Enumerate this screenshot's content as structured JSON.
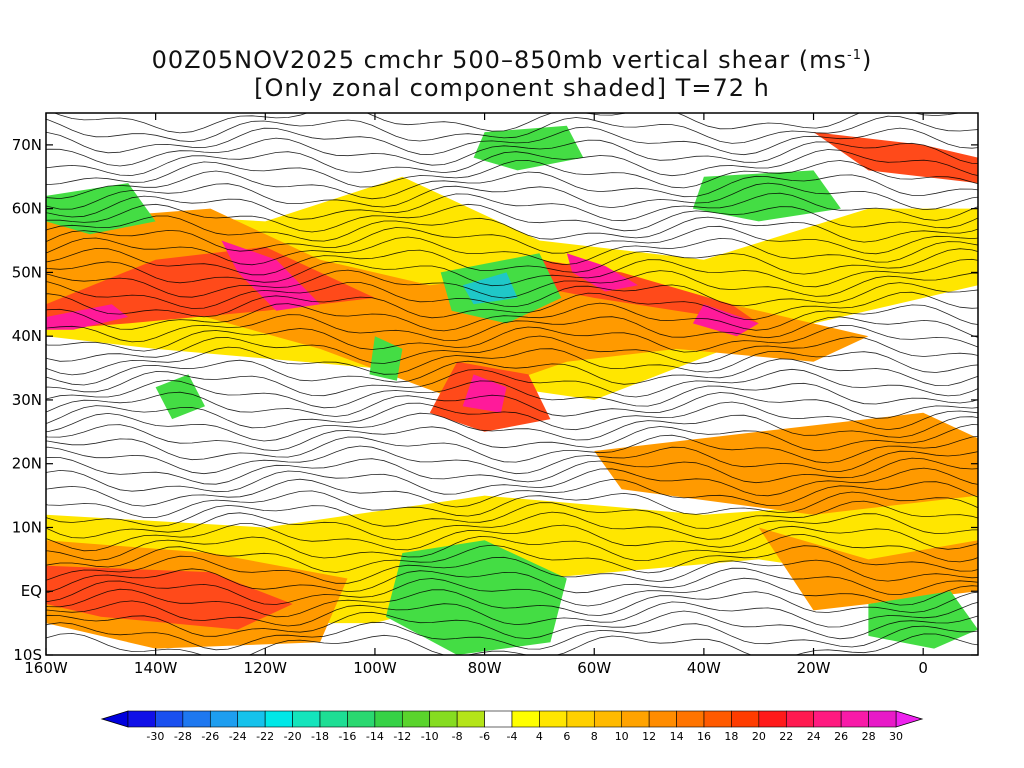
{
  "title": {
    "line1_prefix": "00Z05NOV2025 cmchr 500–850mb vertical shear (ms",
    "line1_sup": "-1",
    "line1_suffix": ")",
    "line2": "[Only zonal component shaded] T=72 h"
  },
  "map": {
    "lon_range": [
      -160,
      10
    ],
    "lat_range": [
      -10,
      75
    ],
    "lon_ticks": [
      {
        "value": -160,
        "label": "160W"
      },
      {
        "value": -140,
        "label": "140W"
      },
      {
        "value": -120,
        "label": "120W"
      },
      {
        "value": -100,
        "label": "100W"
      },
      {
        "value": -80,
        "label": "80W"
      },
      {
        "value": -60,
        "label": "60W"
      },
      {
        "value": -40,
        "label": "40W"
      },
      {
        "value": -20,
        "label": "20W"
      },
      {
        "value": 0,
        "label": "0"
      }
    ],
    "lat_ticks": [
      {
        "value": 70,
        "label": "70N"
      },
      {
        "value": 60,
        "label": "60N"
      },
      {
        "value": 50,
        "label": "50N"
      },
      {
        "value": 40,
        "label": "40N"
      },
      {
        "value": 30,
        "label": "30N"
      },
      {
        "value": 20,
        "label": "20N"
      },
      {
        "value": 10,
        "label": "10N"
      },
      {
        "value": 0,
        "label": "EQ"
      },
      {
        "value": -10,
        "label": "10S"
      }
    ],
    "shear_bands": [
      {
        "level": 4,
        "color": "#ffe600",
        "regions": [
          [
            [
              -160,
              60
            ],
            [
              -120,
              58
            ],
            [
              -95,
              65
            ],
            [
              -70,
              55
            ],
            [
              -40,
              52
            ],
            [
              -10,
              60
            ],
            [
              10,
              60
            ],
            [
              10,
              48
            ],
            [
              -30,
              40
            ],
            [
              -60,
              30
            ],
            [
              -100,
              35
            ],
            [
              -140,
              38
            ],
            [
              -160,
              40
            ]
          ],
          [
            [
              -160,
              12
            ],
            [
              -120,
              10
            ],
            [
              -80,
              15
            ],
            [
              -40,
              12
            ],
            [
              10,
              15
            ],
            [
              10,
              0
            ],
            [
              -30,
              5
            ],
            [
              -70,
              2
            ],
            [
              -100,
              -5
            ],
            [
              -140,
              -5
            ],
            [
              -160,
              0
            ]
          ]
        ]
      },
      {
        "level": 12,
        "color": "#ff9a00",
        "regions": [
          [
            [
              -160,
              58
            ],
            [
              -130,
              60
            ],
            [
              -110,
              52
            ],
            [
              -90,
              48
            ],
            [
              -70,
              50
            ],
            [
              -50,
              48
            ],
            [
              -30,
              44
            ],
            [
              -10,
              40
            ],
            [
              -20,
              36
            ],
            [
              -45,
              38
            ],
            [
              -65,
              36
            ],
            [
              -85,
              30
            ],
            [
              -110,
              38
            ],
            [
              -135,
              44
            ],
            [
              -160,
              44
            ]
          ],
          [
            [
              -160,
              8
            ],
            [
              -130,
              6
            ],
            [
              -105,
              2
            ],
            [
              -110,
              -8
            ],
            [
              -140,
              -9
            ],
            [
              -160,
              -5
            ]
          ],
          [
            [
              -60,
              22
            ],
            [
              -30,
              25
            ],
            [
              0,
              28
            ],
            [
              10,
              24
            ],
            [
              10,
              15
            ],
            [
              -20,
              12
            ],
            [
              -55,
              16
            ]
          ],
          [
            [
              -30,
              10
            ],
            [
              -10,
              5
            ],
            [
              10,
              8
            ],
            [
              10,
              0
            ],
            [
              -20,
              -3
            ]
          ]
        ]
      },
      {
        "level": 20,
        "color": "#ff4a1a",
        "regions": [
          [
            [
              -160,
              45
            ],
            [
              -140,
              52
            ],
            [
              -120,
              54
            ],
            [
              -100,
              46
            ],
            [
              -120,
              44
            ],
            [
              -145,
              42
            ],
            [
              -160,
              41
            ]
          ],
          [
            [
              -85,
              36
            ],
            [
              -72,
              34
            ],
            [
              -68,
              27
            ],
            [
              -80,
              25
            ],
            [
              -90,
              28
            ]
          ],
          [
            [
              -70,
              52
            ],
            [
              -55,
              50
            ],
            [
              -35,
              45
            ],
            [
              -30,
              42
            ],
            [
              -45,
              44
            ],
            [
              -60,
              46
            ],
            [
              -72,
              48
            ]
          ],
          [
            [
              -160,
              4
            ],
            [
              -130,
              3
            ],
            [
              -115,
              -2
            ],
            [
              -125,
              -6
            ],
            [
              -150,
              -4
            ],
            [
              -160,
              -2
            ]
          ],
          [
            [
              -20,
              72
            ],
            [
              0,
              70
            ],
            [
              10,
              68
            ],
            [
              10,
              64
            ],
            [
              -10,
              66
            ]
          ]
        ]
      },
      {
        "level": 26,
        "color": "#ff1a9a",
        "regions": [
          [
            [
              -160,
              43
            ],
            [
              -148,
              45
            ],
            [
              -145,
              43
            ],
            [
              -155,
              41
            ],
            [
              -160,
              41
            ]
          ],
          [
            [
              -128,
              55
            ],
            [
              -118,
              52
            ],
            [
              -110,
              45
            ],
            [
              -118,
              44
            ],
            [
              -125,
              50
            ]
          ],
          [
            [
              -82,
              34
            ],
            [
              -76,
              32
            ],
            [
              -77,
              28
            ],
            [
              -84,
              29
            ]
          ],
          [
            [
              -65,
              53
            ],
            [
              -58,
              51
            ],
            [
              -52,
              48
            ],
            [
              -58,
              47
            ],
            [
              -64,
              50
            ]
          ],
          [
            [
              -40,
              45
            ],
            [
              -30,
              42
            ],
            [
              -34,
              40
            ],
            [
              -42,
              42
            ]
          ]
        ]
      },
      {
        "level": -4,
        "color": "#44dd44",
        "regions": [
          [
            [
              -95,
              6
            ],
            [
              -80,
              8
            ],
            [
              -65,
              2
            ],
            [
              -68,
              -8
            ],
            [
              -85,
              -10
            ],
            [
              -98,
              -4
            ]
          ],
          [
            [
              -88,
              50
            ],
            [
              -70,
              53
            ],
            [
              -66,
              46
            ],
            [
              -76,
              42
            ],
            [
              -86,
              44
            ]
          ],
          [
            [
              -100,
              40
            ],
            [
              -95,
              38
            ],
            [
              -96,
              33
            ],
            [
              -101,
              34
            ]
          ],
          [
            [
              -160,
              62
            ],
            [
              -145,
              64
            ],
            [
              -140,
              58
            ],
            [
              -152,
              56
            ],
            [
              -160,
              58
            ]
          ],
          [
            [
              -80,
              72
            ],
            [
              -65,
              73
            ],
            [
              -62,
              68
            ],
            [
              -74,
              66
            ],
            [
              -82,
              68
            ]
          ],
          [
            [
              -40,
              65
            ],
            [
              -20,
              66
            ],
            [
              -15,
              60
            ],
            [
              -30,
              58
            ],
            [
              -42,
              60
            ]
          ],
          [
            [
              -10,
              -2
            ],
            [
              5,
              0
            ],
            [
              10,
              -6
            ],
            [
              2,
              -9
            ],
            [
              -10,
              -7
            ]
          ],
          [
            [
              -140,
              32
            ],
            [
              -134,
              34
            ],
            [
              -131,
              29
            ],
            [
              -137,
              27
            ]
          ]
        ]
      },
      {
        "level": -10,
        "color": "#1fc8c8",
        "regions": [
          [
            [
              -84,
              48
            ],
            [
              -76,
              50
            ],
            [
              -74,
              46
            ],
            [
              -82,
              45
            ]
          ]
        ]
      }
    ],
    "colorbar": {
      "labels": [
        "-30",
        "-28",
        "-26",
        "-24",
        "-22",
        "-20",
        "-18",
        "-16",
        "-14",
        "-12",
        "-10",
        "-8",
        "-6",
        "-4",
        "4",
        "6",
        "8",
        "10",
        "12",
        "14",
        "16",
        "18",
        "20",
        "22",
        "24",
        "26",
        "28",
        "30"
      ],
      "colors": [
        "#1010e8",
        "#1a50f0",
        "#1e78f0",
        "#1e9ef0",
        "#16c2ec",
        "#00e8e8",
        "#14e4bc",
        "#1ede94",
        "#2ad870",
        "#36d246",
        "#5ad42c",
        "#86dc20",
        "#b4e418",
        "#ffffff",
        "#ffff00",
        "#ffe600",
        "#ffd000",
        "#ffba00",
        "#ffa300",
        "#ff8c00",
        "#ff7400",
        "#ff5a00",
        "#ff3c00",
        "#ff1a1a",
        "#ff1a50",
        "#ff1a80",
        "#f81aa8",
        "#e81ac8"
      ],
      "min_color": "#0000dd",
      "max_color": "#ee22ee"
    }
  }
}
